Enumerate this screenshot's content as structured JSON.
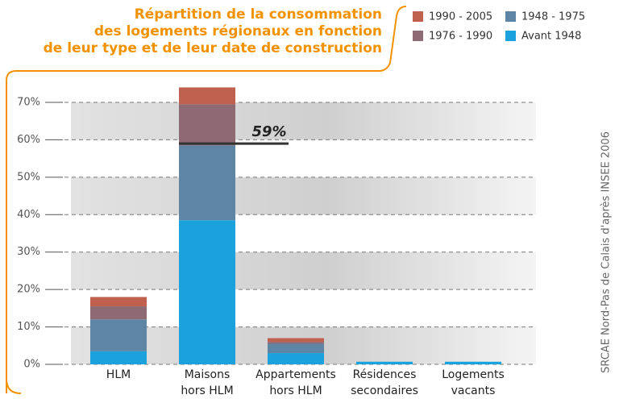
{
  "chart_data": {
    "type": "stacked_bar",
    "title": [
      "Répartition de la consommation",
      "des logements régionaux en fonction",
      "de leur type et de leur date de construction"
    ],
    "source": "SRCAE Nord-Pas de Calais d'après INSEE 2006",
    "categories": [
      [
        "HLM"
      ],
      [
        "Maisons",
        "hors HLM"
      ],
      [
        "Appartements",
        "hors HLM"
      ],
      [
        "Résidences",
        "secondaires"
      ],
      [
        "Logements",
        "vacants"
      ]
    ],
    "series": [
      {
        "name": "Avant 1948",
        "color": "#1ba1dc",
        "values": [
          3.5,
          38.5,
          3,
          0.7,
          0.7
        ]
      },
      {
        "name": "1948 - 1975",
        "color": "#5e85a4",
        "values": [
          8.5,
          20,
          2.5,
          0,
          0
        ]
      },
      {
        "name": "1976 - 1990",
        "color": "#8e6b74",
        "values": [
          3.5,
          11,
          0.5,
          0,
          0
        ]
      },
      {
        "name": "1990 - 2005",
        "color": "#c0604f",
        "values": [
          2.5,
          4.5,
          1,
          0,
          0
        ]
      }
    ],
    "annotation": {
      "value": 59,
      "label": "59%"
    },
    "ylim": [
      0,
      70
    ],
    "yticks": [
      {
        "value": 0,
        "label": "0%"
      },
      {
        "value": 10,
        "label": "10%"
      },
      {
        "value": 20,
        "label": "20%"
      },
      {
        "value": 30,
        "label": "30%"
      },
      {
        "value": 40,
        "label": "40%"
      },
      {
        "value": 50,
        "label": "50%"
      },
      {
        "value": 60,
        "label": "60%"
      },
      {
        "value": 70,
        "label": "70%"
      }
    ],
    "grid": true
  }
}
